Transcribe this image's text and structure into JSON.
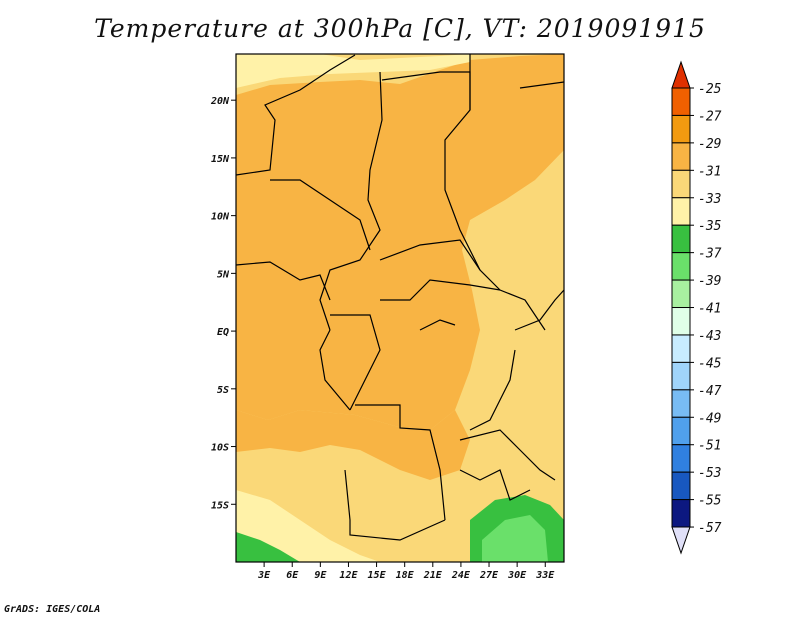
{
  "title": "Temperature at 300hPa [C], VT: 2019091915",
  "credit": "GrADS: IGES/COLA",
  "map": {
    "lon_range": [
      0,
      35
    ],
    "lat_range": [
      -20,
      24
    ],
    "lat_labels": [
      "20N",
      "15N",
      "10N",
      "5N",
      "EQ",
      "5S",
      "10S",
      "15S"
    ],
    "lat_values": [
      20,
      15,
      10,
      5,
      0,
      -5,
      -10,
      -15
    ],
    "lon_labels": [
      "3E",
      "6E",
      "9E",
      "12E",
      "15E",
      "18E",
      "21E",
      "24E",
      "27E",
      "30E",
      "33E"
    ],
    "lon_values": [
      3,
      6,
      9,
      12,
      15,
      18,
      21,
      24,
      27,
      30,
      33
    ]
  },
  "colorbar": {
    "labels": [
      "-25",
      "-27",
      "-29",
      "-31",
      "-33",
      "-35",
      "-37",
      "-39",
      "-41",
      "-43",
      "-45",
      "-47",
      "-49",
      "-51",
      "-53",
      "-55",
      "-57"
    ],
    "colors": [
      "#e03000",
      "#f06000",
      "#f29a10",
      "#f8b444",
      "#fad878",
      "#fff2a8",
      "#38c040",
      "#6ae06a",
      "#a8f0a0",
      "#e0ffe8",
      "#c8ecff",
      "#a0d4fa",
      "#78bcf4",
      "#50a0ec",
      "#3080e0",
      "#1858c0",
      "#0c1880",
      "#e0e0f8"
    ]
  },
  "colors": {
    "c_31_29": "#f8b444",
    "c_33_31": "#fad878",
    "c_35_33": "#fff2a8",
    "c_37_35": "#38c040",
    "c_39_37": "#6ae06a"
  }
}
